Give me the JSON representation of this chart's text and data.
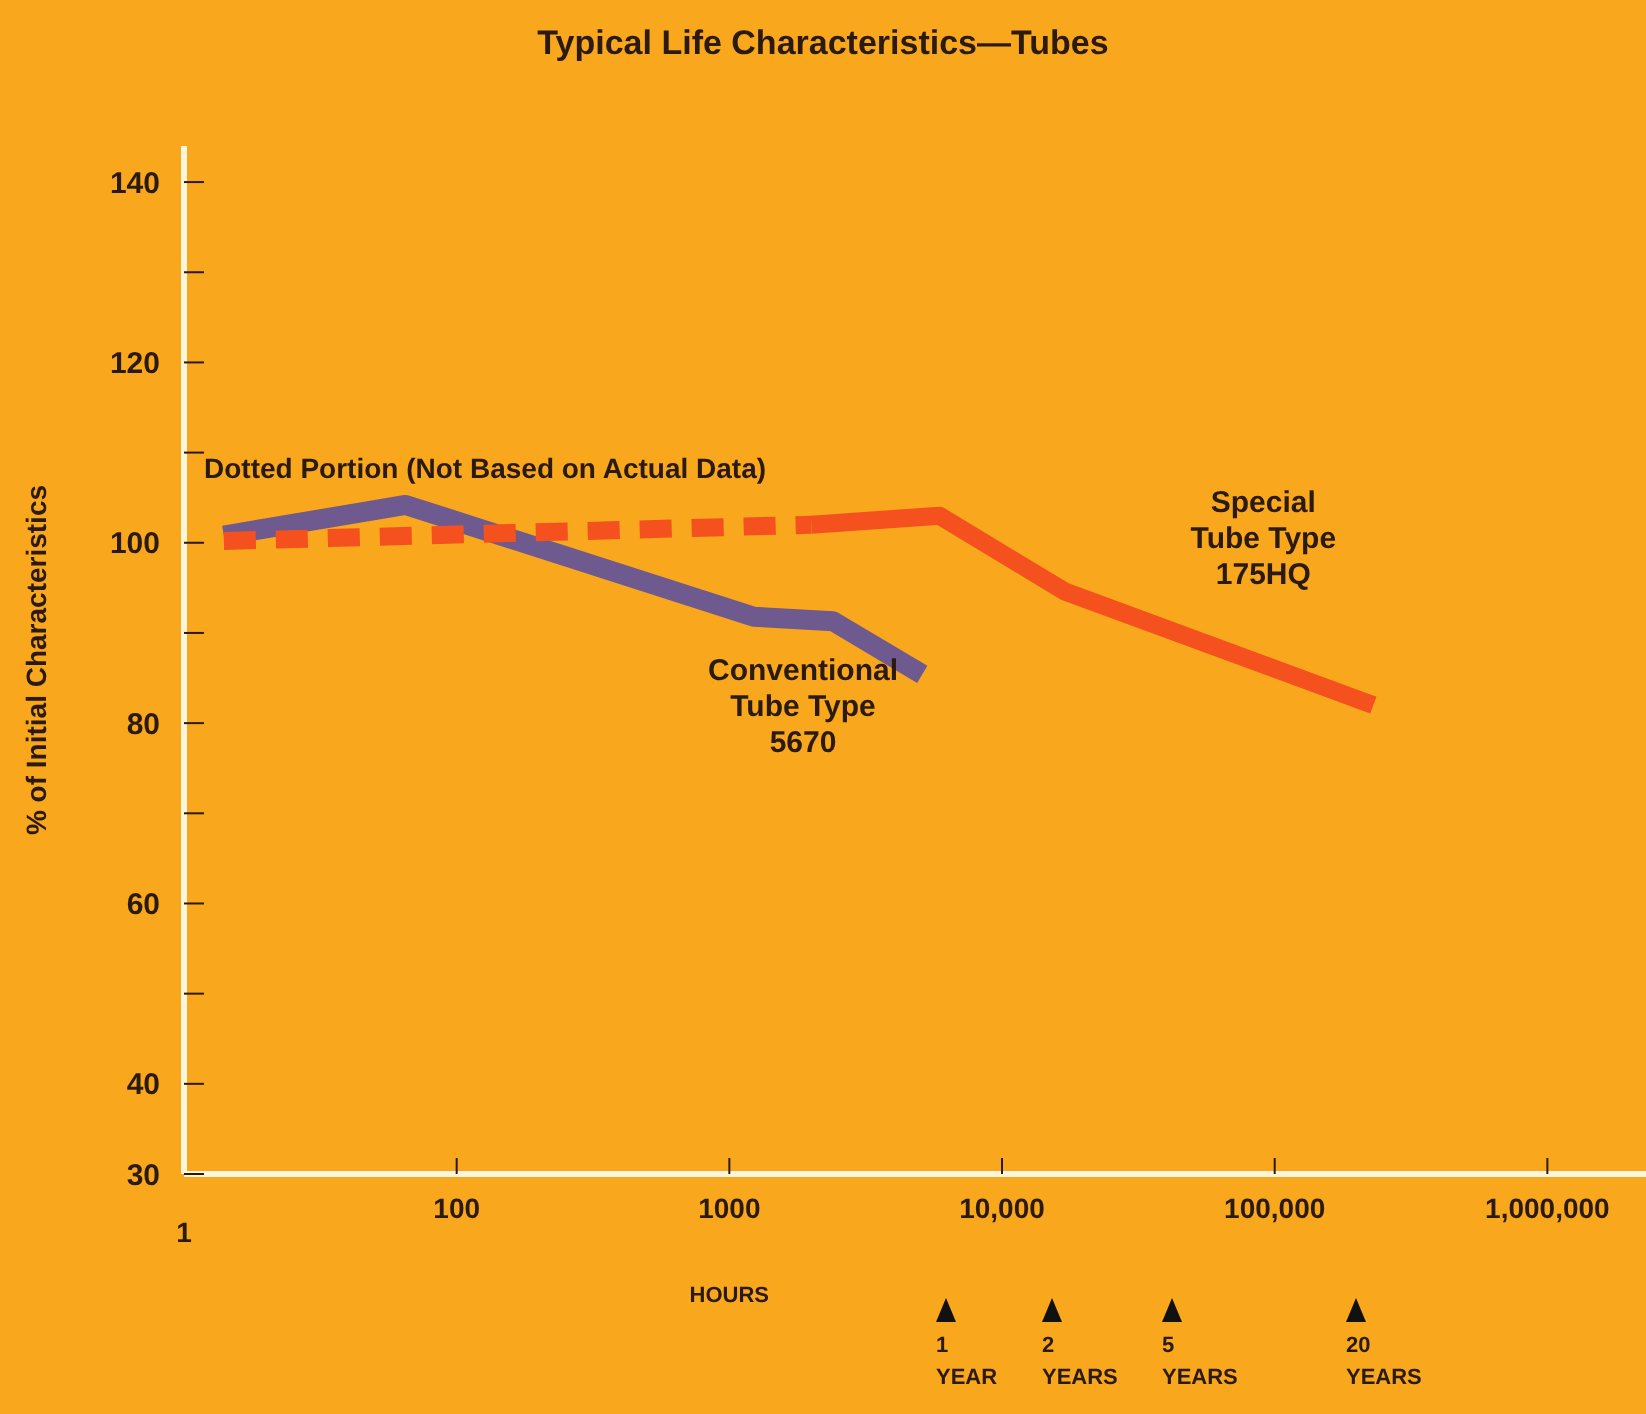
{
  "chart_data": {
    "type": "line",
    "title": "Typical Life Characteristics—Tubes",
    "xlabel": "HOURS",
    "ylabel": "% of Initial Characteristics",
    "log": "x",
    "xlim": [
      10,
      2300000
    ],
    "xticks": [
      {
        "value": 100,
        "label": "100"
      },
      {
        "value": 1000,
        "label": "1000"
      },
      {
        "value": 10000,
        "label": "10,000"
      },
      {
        "value": 100000,
        "label": "100,000"
      },
      {
        "value": 1000000,
        "label": "1,000,000"
      }
    ],
    "ylim": [
      30,
      144
    ],
    "yticks": [
      30,
      40,
      {
        "value": 50,
        "label": null
      },
      60,
      {
        "value": 70,
        "label": null
      },
      80,
      {
        "value": 90,
        "label": null
      },
      100,
      {
        "value": 110,
        "label": null
      },
      120,
      {
        "value": 130,
        "label": null
      },
      140
    ],
    "grid": false,
    "legend": false,
    "marker": "none",
    "series": [
      {
        "name": "Conventional Tube Type 5670",
        "color": "#6e5a8e",
        "x": [
          14,
          65,
          1230,
          2400,
          5100
        ],
        "values": [
          100.8,
          104.2,
          91.8,
          91.3,
          85.4
        ]
      },
      {
        "color": "#f4511e",
        "line_style": "dashed",
        "x": [
          14,
          2000
        ],
        "values": [
          100.2,
          102
        ]
      },
      {
        "name": "Special Tube Type 175HQ",
        "color": "#f4511e",
        "x": [
          2000,
          5900,
          17000,
          230000
        ],
        "values": [
          102,
          103,
          94.6,
          82
        ]
      }
    ],
    "annotations": [
      "Dotted Portion (Not Based on Actual Data)",
      "1",
      "1 YEAR",
      "2 YEARS",
      "5 YEARS",
      "20 YEARS"
    ]
  }
}
